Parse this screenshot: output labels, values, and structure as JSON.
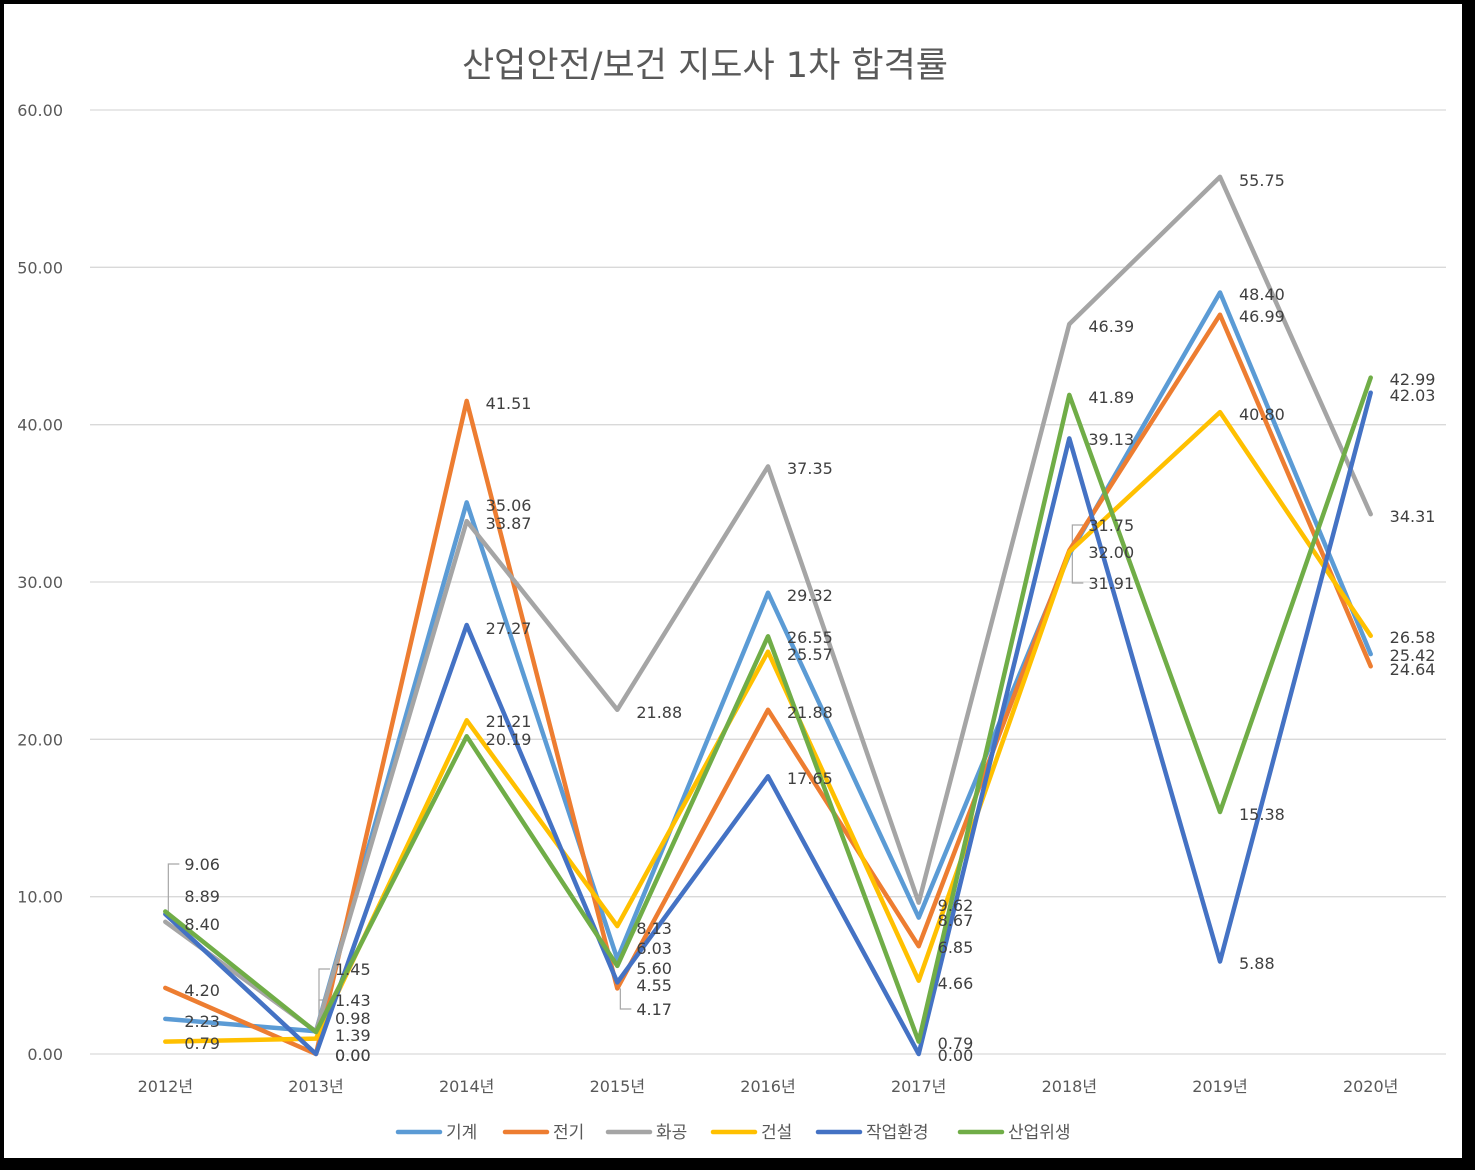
{
  "chart_data": {
    "type": "line",
    "title": "산업안전/보건 지도사 1차 합격률",
    "xlabel": "",
    "ylabel": "",
    "categories": [
      "2012년",
      "2013년",
      "2014년",
      "2015년",
      "2016년",
      "2017년",
      "2018년",
      "2019년",
      "2020년"
    ],
    "ylim": [
      0,
      60
    ],
    "ytick_labels": [
      "0.00",
      "10.00",
      "20.00",
      "30.00",
      "40.00",
      "50.00",
      "60.00"
    ],
    "grid": true,
    "legend": "bottom",
    "series": [
      {
        "name": "기계",
        "color": "#5B9BD5",
        "values": [
          2.23,
          1.45,
          35.06,
          6.03,
          29.32,
          8.67,
          31.75,
          48.4,
          25.42
        ]
      },
      {
        "name": "전기",
        "color": "#ED7D31",
        "values": [
          4.2,
          0.0,
          41.51,
          4.17,
          21.88,
          6.85,
          32.0,
          46.99,
          24.64
        ]
      },
      {
        "name": "화공",
        "color": "#A5A5A5",
        "values": [
          8.4,
          1.43,
          33.87,
          21.88,
          37.35,
          9.62,
          46.39,
          55.75,
          34.31
        ]
      },
      {
        "name": "건설",
        "color": "#FFC000",
        "values": [
          0.79,
          0.98,
          21.21,
          8.13,
          25.57,
          4.66,
          31.91,
          40.8,
          26.58
        ]
      },
      {
        "name": "작업환경",
        "color": "#4472C4",
        "values": [
          8.89,
          0.0,
          27.27,
          4.55,
          17.65,
          0.0,
          39.13,
          5.88,
          42.03
        ]
      },
      {
        "name": "산업위생",
        "color": "#70AD47",
        "values": [
          9.06,
          1.39,
          20.19,
          5.6,
          26.55,
          0.79,
          41.89,
          15.38,
          42.99
        ]
      }
    ]
  }
}
